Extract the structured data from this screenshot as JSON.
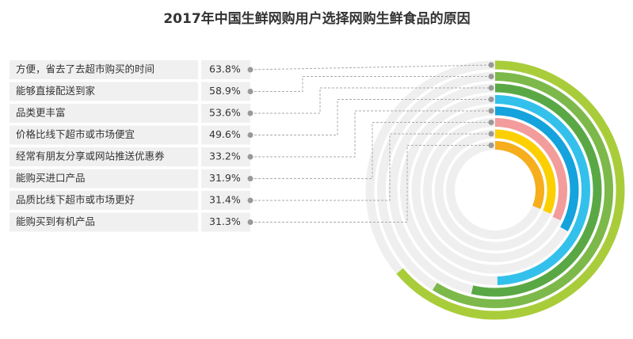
{
  "chart_data": {
    "type": "radial-bar",
    "title": "2017年中国生鲜网购用户选择网购生鲜食品的原因",
    "categories": [
      "方便，省去了去超市购买的时间",
      "能够直接配送到家",
      "品类更丰富",
      "价格比线下超市或市场便宜",
      "经常有朋友分享或网站推送优惠券",
      "能购买进口产品",
      "品质比线下超市或市场更好",
      "能购买到有机产品"
    ],
    "values": [
      63.8,
      58.9,
      53.6,
      49.6,
      33.2,
      31.9,
      31.4,
      31.3
    ],
    "value_labels": [
      "63.8%",
      "58.9%",
      "53.6%",
      "49.6%",
      "33.2%",
      "31.9%",
      "31.4%",
      "31.3%"
    ],
    "colors": [
      "#a9cd3a",
      "#7cb94a",
      "#5aa845",
      "#33c1ec",
      "#14a3dc",
      "#f29c9b",
      "#fcd000",
      "#f6ae1c"
    ]
  }
}
